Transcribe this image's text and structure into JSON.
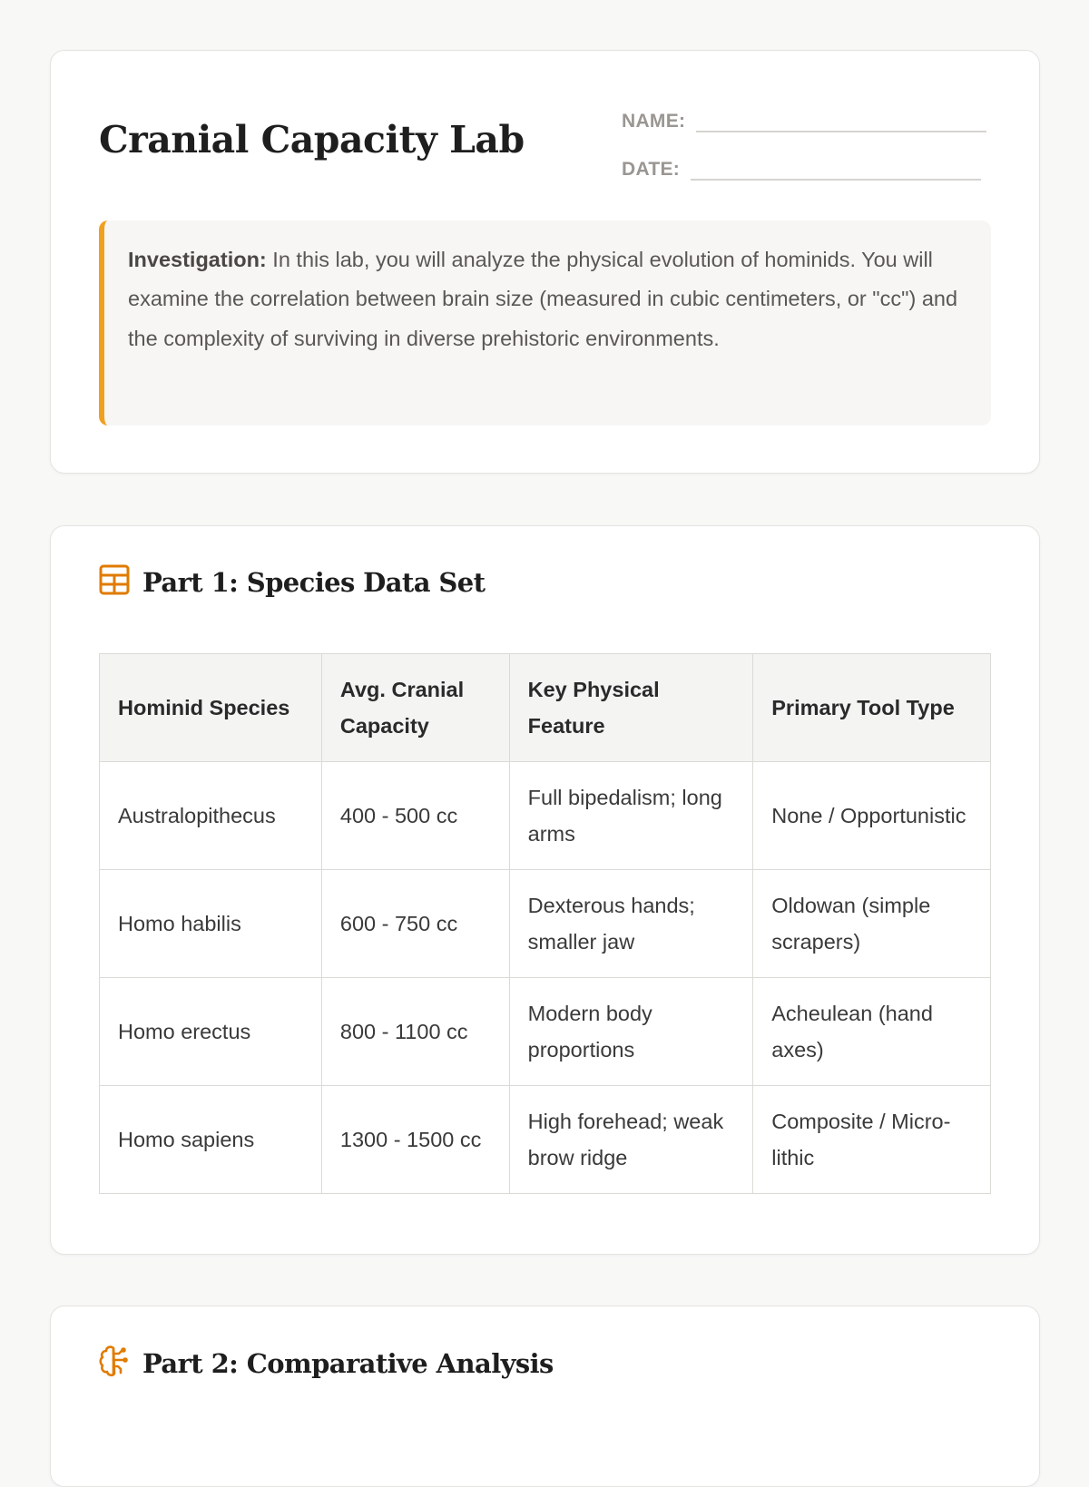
{
  "header": {
    "title": "Cranial Capacity Lab",
    "name_label": "NAME:",
    "date_label": "DATE:"
  },
  "intro": {
    "lead": "Investigation:",
    "text": " In this lab, you will analyze the physical evolution of hominids. You will examine the correlation between brain size (measured in cubic centimeters, or \"cc\") and the complexity of surviving in diverse prehistoric environments."
  },
  "part1": {
    "icon": "table-icon",
    "title": "Part 1: Species Data Set",
    "columns": [
      "Hominid Species",
      "Avg. Cranial Capacity",
      "Key Physical Feature",
      "Primary Tool Type"
    ],
    "rows": [
      [
        "Australopithecus",
        "400 - 500 cc",
        "Full bipedalism; long arms",
        "None / Opportunistic"
      ],
      [
        "Homo habilis",
        "600 - 750 cc",
        "Dexterous hands; smaller jaw",
        "Oldowan (simple scrapers)"
      ],
      [
        "Homo erectus",
        "800 - 1100 cc",
        "Modern body proportions",
        "Acheulean (hand axes)"
      ],
      [
        "Homo sapiens",
        "1300 - 1500 cc",
        "High forehead; weak brow ridge",
        "Composite / Micro-lithic"
      ]
    ]
  },
  "part2": {
    "icon": "brain-icon",
    "title": "Part 2: Comparative Analysis"
  },
  "colors": {
    "accent": "#e07b00",
    "callout_border": "#f0a020"
  }
}
